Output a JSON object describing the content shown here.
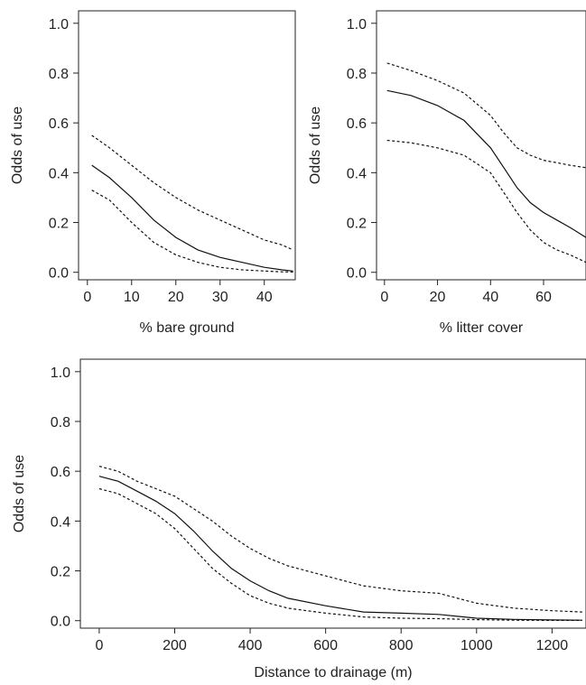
{
  "chart_data": [
    {
      "type": "line",
      "xlabel": "% bare ground",
      "ylabel": "Odds of use",
      "xlim": [
        -2,
        47
      ],
      "ylim": [
        -0.03,
        1.05
      ],
      "xticks": [
        0,
        10,
        20,
        30,
        40
      ],
      "yticks": [
        0.0,
        0.2,
        0.4,
        0.6,
        0.8,
        1.0
      ],
      "ytick_labels": [
        "0.0",
        "0.2",
        "0.4",
        "0.6",
        "0.8",
        "1.0"
      ],
      "grid": false,
      "series": [
        {
          "style": "solid",
          "x": [
            1,
            5,
            10,
            15,
            20,
            25,
            30,
            35,
            40,
            44,
            46.5
          ],
          "y": [
            0.43,
            0.38,
            0.3,
            0.21,
            0.14,
            0.09,
            0.06,
            0.04,
            0.02,
            0.01,
            0.005
          ]
        },
        {
          "style": "dashed",
          "x": [
            1,
            5,
            10,
            15,
            20,
            25,
            30,
            35,
            40,
            44,
            46.5
          ],
          "y": [
            0.55,
            0.5,
            0.43,
            0.36,
            0.3,
            0.25,
            0.21,
            0.17,
            0.13,
            0.11,
            0.09
          ]
        },
        {
          "style": "dashed",
          "x": [
            1,
            5,
            10,
            15,
            20,
            25,
            30,
            35,
            40,
            44,
            46.5
          ],
          "y": [
            0.33,
            0.29,
            0.2,
            0.12,
            0.07,
            0.04,
            0.02,
            0.01,
            0.005,
            0.002,
            0.001
          ]
        }
      ]
    },
    {
      "type": "line",
      "xlabel": "% litter cover",
      "ylabel": "Odds of use",
      "xlim": [
        -3,
        76
      ],
      "ylim": [
        -0.03,
        1.05
      ],
      "xticks": [
        0,
        20,
        40,
        60
      ],
      "yticks": [
        0.0,
        0.2,
        0.4,
        0.6,
        0.8,
        1.0
      ],
      "ytick_labels": [
        "0.0",
        "0.2",
        "0.4",
        "0.6",
        "0.8",
        "1.0"
      ],
      "grid": false,
      "series": [
        {
          "style": "solid",
          "x": [
            1,
            10,
            20,
            30,
            40,
            45,
            50,
            55,
            60,
            65,
            70,
            76
          ],
          "y": [
            0.73,
            0.71,
            0.67,
            0.61,
            0.5,
            0.42,
            0.34,
            0.28,
            0.24,
            0.21,
            0.18,
            0.14
          ]
        },
        {
          "style": "dashed",
          "x": [
            1,
            10,
            20,
            30,
            40,
            45,
            50,
            55,
            60,
            65,
            70,
            76
          ],
          "y": [
            0.84,
            0.81,
            0.77,
            0.72,
            0.63,
            0.56,
            0.5,
            0.47,
            0.45,
            0.44,
            0.43,
            0.42
          ]
        },
        {
          "style": "dashed",
          "x": [
            1,
            10,
            20,
            30,
            40,
            45,
            50,
            55,
            60,
            65,
            70,
            76
          ],
          "y": [
            0.53,
            0.52,
            0.5,
            0.47,
            0.4,
            0.32,
            0.24,
            0.17,
            0.12,
            0.09,
            0.07,
            0.04
          ]
        }
      ]
    },
    {
      "type": "line",
      "xlabel": "Distance to drainage (m)",
      "ylabel": "Odds of use",
      "xlim": [
        -50,
        1290
      ],
      "ylim": [
        -0.03,
        1.05
      ],
      "xticks": [
        0,
        200,
        400,
        600,
        800,
        1000,
        1200
      ],
      "yticks": [
        0.0,
        0.2,
        0.4,
        0.6,
        0.8,
        1.0
      ],
      "ytick_labels": [
        "0.0",
        "0.2",
        "0.4",
        "0.6",
        "0.8",
        "1.0"
      ],
      "grid": false,
      "series": [
        {
          "style": "solid",
          "x": [
            0,
            50,
            100,
            150,
            200,
            250,
            300,
            350,
            400,
            450,
            500,
            600,
            700,
            800,
            900,
            1000,
            1100,
            1200,
            1280
          ],
          "y": [
            0.58,
            0.56,
            0.52,
            0.48,
            0.43,
            0.36,
            0.28,
            0.21,
            0.16,
            0.12,
            0.09,
            0.06,
            0.035,
            0.03,
            0.025,
            0.01,
            0.005,
            0.003,
            0.002
          ]
        },
        {
          "style": "dashed",
          "x": [
            0,
            50,
            100,
            150,
            200,
            250,
            300,
            350,
            400,
            450,
            500,
            600,
            700,
            800,
            900,
            1000,
            1100,
            1200,
            1280
          ],
          "y": [
            0.62,
            0.6,
            0.56,
            0.53,
            0.5,
            0.45,
            0.4,
            0.34,
            0.29,
            0.25,
            0.22,
            0.18,
            0.14,
            0.12,
            0.11,
            0.07,
            0.05,
            0.04,
            0.035
          ]
        },
        {
          "style": "dashed",
          "x": [
            0,
            50,
            100,
            150,
            200,
            250,
            300,
            350,
            400,
            450,
            500,
            600,
            700,
            800,
            900,
            1000,
            1100,
            1200,
            1280
          ],
          "y": [
            0.53,
            0.51,
            0.47,
            0.43,
            0.37,
            0.29,
            0.21,
            0.15,
            0.1,
            0.07,
            0.05,
            0.03,
            0.015,
            0.01,
            0.008,
            0.004,
            0.002,
            0.001,
            0.001
          ]
        }
      ]
    }
  ]
}
